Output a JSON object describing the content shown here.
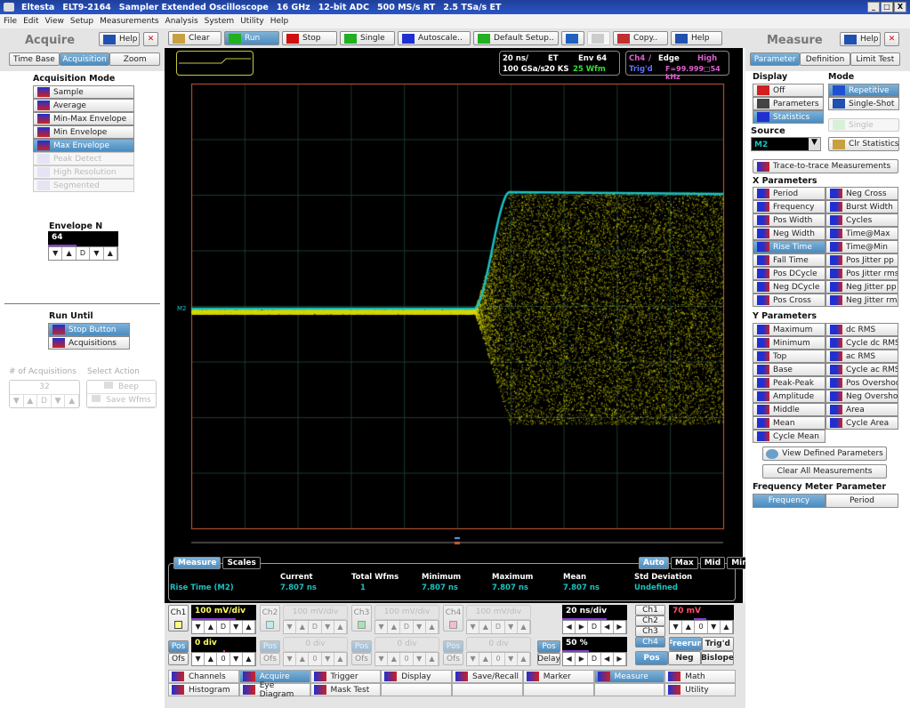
{
  "title_bar": {
    "parts": [
      "Eltesta",
      "ELT9-2164",
      "Sampler Extended Oscilloscope",
      "16 GHz",
      "12-bit ADC",
      "500 MS/s RT",
      "2.5 TSa/s ET"
    ],
    "win_buttons": [
      "_",
      "□",
      "X"
    ]
  },
  "menu": [
    "File",
    "Edit",
    "View",
    "Setup",
    "Measurements",
    "Analysis",
    "System",
    "Utility",
    "Help"
  ],
  "toolbar": [
    {
      "label": "Clear",
      "icon": "broom-icon",
      "color": "#c8a040"
    },
    {
      "label": "Run",
      "icon": "play-icon",
      "color": "#20b020",
      "selected": true
    },
    {
      "label": "Stop",
      "icon": "stop-icon",
      "color": "#d01010"
    },
    {
      "label": "Single",
      "icon": "single-icon",
      "color": "#20b020"
    },
    {
      "label": "Autoscale..",
      "icon": "autoscale-icon",
      "color": "#2030d0"
    },
    {
      "label": "Default Setup..",
      "icon": "checkmark-icon",
      "color": "#20b020"
    },
    {
      "label": "",
      "icon": "undo-icon",
      "color": "#2060c0"
    },
    {
      "label": "",
      "icon": "redo-icon",
      "color": "#cccccc",
      "disabled": true
    },
    {
      "label": "Copy..",
      "icon": "copy-icon",
      "color": "#c03030"
    },
    {
      "label": "Help",
      "icon": "help-icon",
      "color": "#2050b0"
    }
  ],
  "left": {
    "title": "Acquire",
    "help": "Help",
    "tabs": [
      "Time Base",
      "Acquisition",
      "Zoom"
    ],
    "active_tab": 1,
    "acq_mode_label": "Acquisition Mode",
    "modes": [
      {
        "label": "Sample"
      },
      {
        "label": "Average"
      },
      {
        "label": "Min-Max Envelope"
      },
      {
        "label": "Min Envelope"
      },
      {
        "label": "Max Envelope",
        "selected": true
      },
      {
        "label": "Peak Detect",
        "disabled": true
      },
      {
        "label": "High Resolution",
        "disabled": true
      },
      {
        "label": "Segmented",
        "disabled": true
      }
    ],
    "envelope_label": "Envelope N",
    "envelope_value": "64",
    "spin5": [
      "▼",
      "▲",
      "D",
      "▼",
      "▲"
    ],
    "run_until_label": "Run Until",
    "run_until": [
      {
        "label": "Stop Button",
        "selected": true
      },
      {
        "label": "Acquisitions"
      }
    ],
    "num_acq_label": "# of Acquisitions",
    "num_acq_value": "32",
    "select_action_label": "Select Action",
    "actions": [
      "Beep",
      "Save Wfms"
    ]
  },
  "readout": {
    "timebase": "20 ns/",
    "mode": "ET",
    "env": "Env 64",
    "rate": "100 GSa/s",
    "record": "20 KS",
    "wfm": "25 Wfm",
    "trig_src": "Ch4",
    "trig_slope": "/",
    "trig_type": "Edge",
    "trig_level": "High",
    "trig_state": "Trig'd",
    "trig_freq": "F=99.999□54 kHz"
  },
  "screen": {
    "marker_label": "M2",
    "colors": {
      "cyan": "#19c2c2",
      "yellow": "#d8d800",
      "grid": "#1c3a2c",
      "frame": "#d06030"
    }
  },
  "measure_panel": {
    "tabs": [
      "Measure",
      "Scales"
    ],
    "scale_buttons": [
      "Auto",
      "Max",
      "Mid",
      "Min"
    ],
    "headers": [
      "Current",
      "Total Wfms",
      "Minimum",
      "Maximum",
      "Mean",
      "Std Deviation"
    ],
    "row": {
      "name": "Rise Time (M2)",
      "values": [
        "7.807 ns",
        "1",
        "7.807 ns",
        "7.807 ns",
        "7.807 ns",
        "Undefined"
      ]
    }
  },
  "channels": [
    {
      "label": "Ch1",
      "scale": "100 mV/div",
      "offset": "0 div",
      "color": "#ffff80",
      "active": true
    },
    {
      "label": "Ch2",
      "scale": "100 mV/div",
      "offset": "0 div",
      "color": "#80ffff"
    },
    {
      "label": "Ch3",
      "scale": "100 mV/div",
      "offset": "0 div",
      "color": "#60e080"
    },
    {
      "label": "Ch4",
      "scale": "100 mV/div",
      "offset": "0 div",
      "color": "#ff90c0"
    }
  ],
  "pos": "Pos",
  "ofs": "Ofs",
  "delay": "Delay",
  "spin_zero": [
    "▼",
    "▲",
    "0",
    "▼",
    "▲"
  ],
  "spin_lr": [
    "◀",
    "▶",
    "D",
    "◀",
    "▶"
  ],
  "timebase": {
    "scale": "20 ns/div",
    "position": "50 %"
  },
  "trigger": {
    "sources": [
      "Ch1",
      "Ch2",
      "Ch3",
      "Ch4"
    ],
    "selected": 3,
    "level": "70 mV",
    "modes": [
      "Freerun",
      "Trig'd"
    ],
    "slopes": [
      "Pos",
      "Neg",
      "Bislope"
    ]
  },
  "nav": [
    {
      "label": "Channels",
      "icon": "channels-icon"
    },
    {
      "label": "Acquire",
      "icon": "acquire-icon",
      "selected": true
    },
    {
      "label": "Trigger",
      "icon": "trigger-icon"
    },
    {
      "label": "Display",
      "icon": "display-icon"
    },
    {
      "label": "Save/Recall",
      "icon": "save-icon"
    },
    {
      "label": "Marker",
      "icon": "marker-icon"
    },
    {
      "label": "Measure",
      "icon": "measure-icon",
      "selected": true
    },
    {
      "label": "Math",
      "icon": "math-icon"
    },
    {
      "label": "Histogram",
      "icon": "histogram-icon"
    },
    {
      "label": "Eye Diagram",
      "icon": "eye-diagram-icon"
    },
    {
      "label": "Mask Test",
      "icon": "mask-test-icon"
    },
    {
      "label": ""
    },
    {
      "label": ""
    },
    {
      "label": ""
    },
    {
      "label": ""
    },
    {
      "label": "Utility",
      "icon": "utility-icon"
    }
  ],
  "right": {
    "title": "Measure",
    "help": "Help",
    "tabs": [
      "Parameter",
      "Definition",
      "Limit Test"
    ],
    "active_tab": 0,
    "display_label": "Display",
    "display": [
      {
        "label": "Off"
      },
      {
        "label": "Parameters"
      },
      {
        "label": "Statistics",
        "selected": true
      }
    ],
    "mode_label": "Mode",
    "modes": [
      {
        "label": "Repetitive",
        "selected": true
      },
      {
        "label": "Single-Shot"
      }
    ],
    "single": "Single",
    "source_label": "Source",
    "source": "M2",
    "clr_stats": "Clr Statistics",
    "trace_to_trace": "Trace-to-trace Measurements",
    "x_label": "X Parameters",
    "x_params": [
      "Period",
      "Neg Cross",
      "Frequency",
      "Burst Width",
      "Pos Width",
      "Cycles",
      "Neg Width",
      "Time@Max",
      "Rise Time",
      "Time@Min",
      "Fall Time",
      "Pos Jitter pp",
      "Pos DCycle",
      "Pos Jitter rms",
      "Neg DCycle",
      "Neg Jitter pp",
      "Pos Cross",
      "Neg Jitter rms"
    ],
    "x_selected": "Rise Time",
    "y_label": "Y Parameters",
    "y_params": [
      "Maximum",
      "dc RMS",
      "Minimum",
      "Cycle dc RMS",
      "Top",
      "ac RMS",
      "Base",
      "Cycle ac RMS",
      "Peak-Peak",
      "Pos Overshoot",
      "Amplitude",
      "Neg Overshoot",
      "Middle",
      "Area",
      "Mean",
      "Cycle Area",
      "Cycle Mean"
    ],
    "view_defined": "View Defined Parameters",
    "clear_all": "Clear All Measurements",
    "freq_label": "Frequency Meter Parameter",
    "freq_opts": [
      "Frequency",
      "Period"
    ],
    "freq_selected": 0
  }
}
